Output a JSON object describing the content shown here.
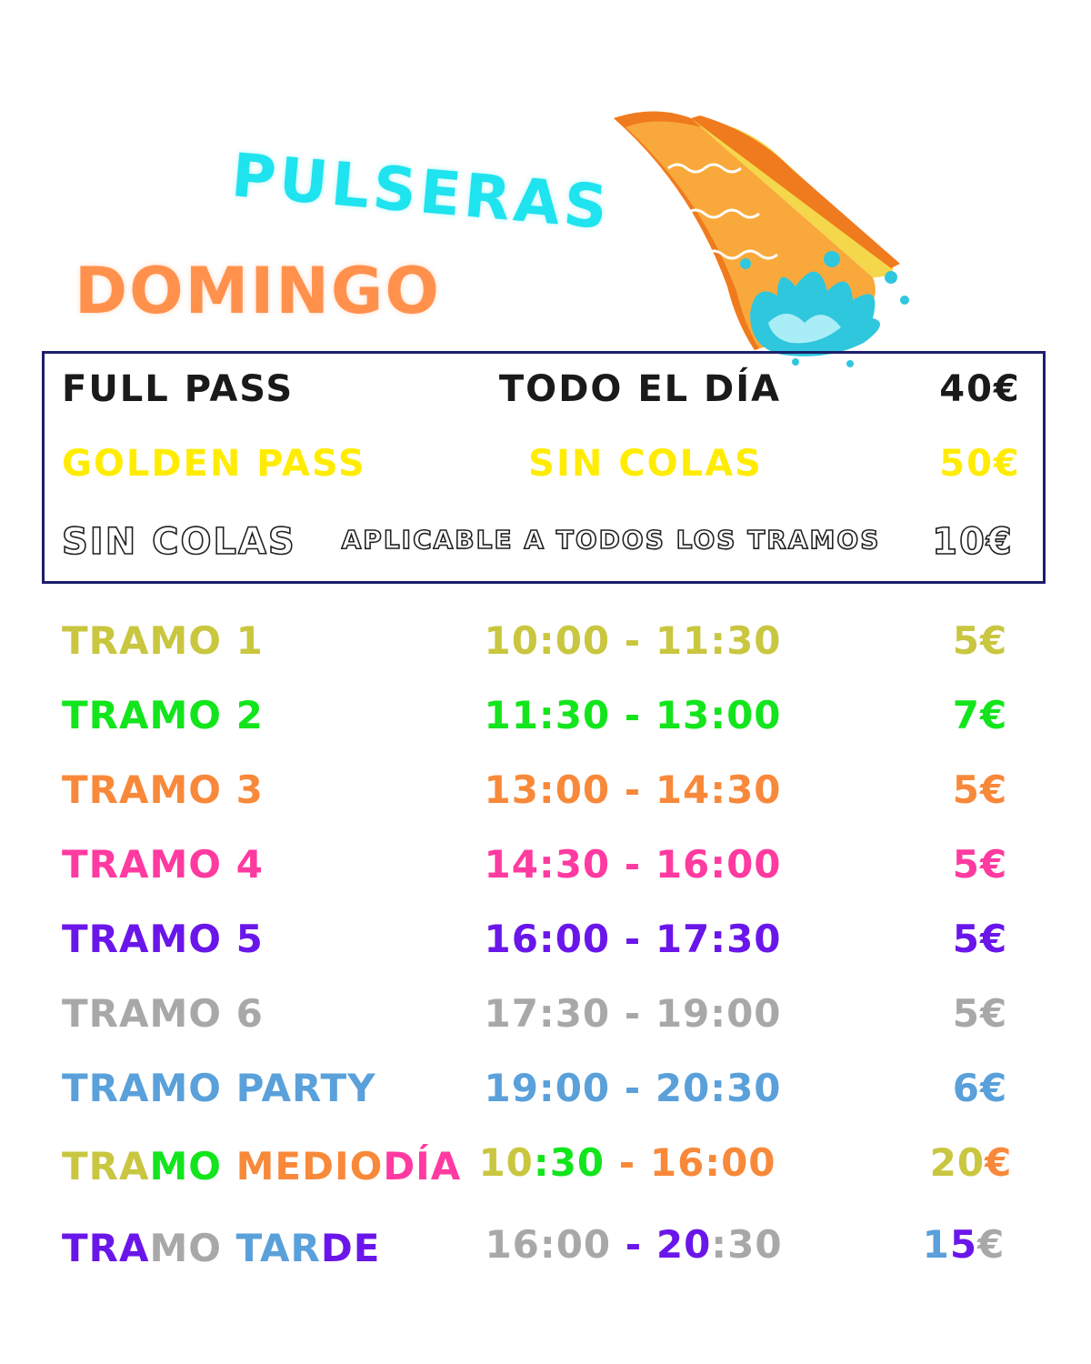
{
  "header": {
    "pulseras": "PULSERAS",
    "domingo": "DOMINGO"
  },
  "passes": [
    {
      "name": "FULL PASS",
      "desc": "TODO EL DÍA",
      "price": "40€",
      "color": "#1a1a1a",
      "style": "solid"
    },
    {
      "name": "GOLDEN PASS",
      "desc": "SIN COLAS",
      "price": "50€",
      "color": "#ffec00",
      "style": "solid"
    },
    {
      "name": "SIN COLAS",
      "desc": "APLICABLE A TODOS LOS TRAMOS",
      "price": "10€",
      "color": "#ffffff",
      "style": "outline"
    }
  ],
  "tramos": [
    {
      "name": "TRAMO 1",
      "time": "10:00 - 11:30",
      "price": "5€",
      "color": "#c9c640"
    },
    {
      "name": "TRAMO 2",
      "time": "11:30 - 13:00",
      "price": "7€",
      "color": "#12e51c"
    },
    {
      "name": "TRAMO 3",
      "time": "13:00 - 14:30",
      "price": "5€",
      "color": "#f8893a"
    },
    {
      "name": "TRAMO 4",
      "time": "14:30 - 16:00",
      "price": "5€",
      "color": "#ff3aa0"
    },
    {
      "name": "TRAMO 5",
      "time": "16:00 - 17:30",
      "price": "5€",
      "color": "#6a16ea"
    },
    {
      "name": "TRAMO 6",
      "time": "17:30 - 19:00",
      "price": "5€",
      "color": "#a8a8a8"
    },
    {
      "name": "TRAMO PARTY",
      "time": "19:00 - 20:30",
      "price": "6€",
      "color": "#5aa0da"
    }
  ],
  "multicolor": [
    {
      "name_segments": [
        {
          "text": "TRA",
          "color": "#c9c640"
        },
        {
          "text": "MO ",
          "color": "#12e51c"
        },
        {
          "text": "MEDIO",
          "color": "#f8893a"
        },
        {
          "text": "DÍA",
          "color": "#ff3aa0"
        }
      ],
      "time_segments": [
        {
          "text": "10",
          "color": "#c9c640"
        },
        {
          "text": ":30",
          "color": "#12e51c"
        },
        {
          "text": " - 16:00",
          "color": "#f8893a"
        }
      ],
      "price_segments": [
        {
          "text": "20",
          "color": "#c9c640"
        },
        {
          "text": "€",
          "color": "#f8893a"
        }
      ]
    },
    {
      "name_segments": [
        {
          "text": "TRA",
          "color": "#6a16ea"
        },
        {
          "text": "MO ",
          "color": "#a8a8a8"
        },
        {
          "text": "TAR",
          "color": "#5aa0da"
        },
        {
          "text": "DE",
          "color": "#6a16ea"
        }
      ],
      "time_segments": [
        {
          "text": "16:00",
          "color": "#a8a8a8"
        },
        {
          "text": " - ",
          "color": "#6a16ea"
        },
        {
          "text": "20",
          "color": "#6a16ea"
        },
        {
          "text": ":30",
          "color": "#a8a8a8"
        }
      ],
      "price_segments": [
        {
          "text": "1",
          "color": "#5aa0da"
        },
        {
          "text": "5",
          "color": "#6a16ea"
        },
        {
          "text": "€",
          "color": "#a8a8a8"
        }
      ]
    }
  ],
  "colors": {
    "title_cyan": "#1fe3ee",
    "title_orange": "#ff914d",
    "box_border": "#1b1f6b"
  },
  "illustration": {
    "icon": "water-slide-splash-icon"
  }
}
